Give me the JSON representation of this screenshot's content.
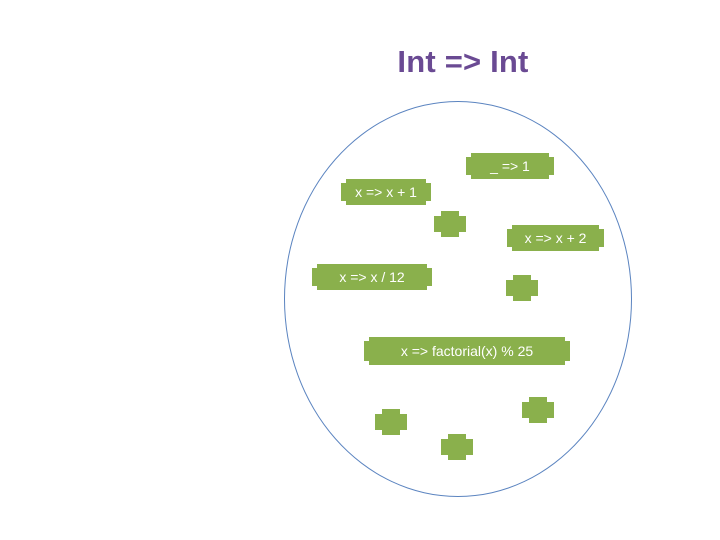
{
  "title": "Int => Int",
  "functions": [
    {
      "label": "_ => 1"
    },
    {
      "label": "x => x + 1"
    },
    {
      "label": "x => x + 2"
    },
    {
      "label": "x => x  / 12"
    },
    {
      "label": "x => factorial(x) % 25"
    }
  ],
  "colors": {
    "title": "#6a4a93",
    "ellipse_border": "#5b84c0",
    "function_fill": "#8ab04c",
    "function_text": "#ffffff"
  }
}
